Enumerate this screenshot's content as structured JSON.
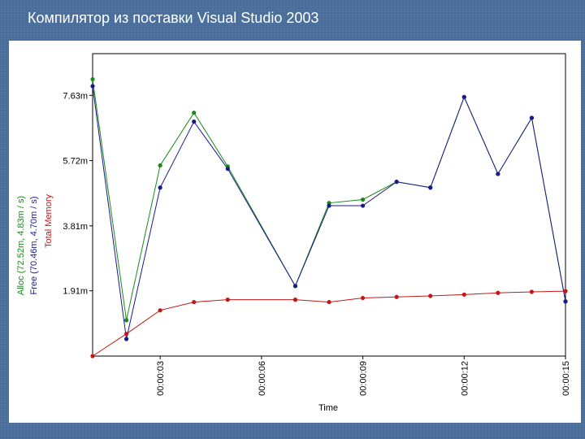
{
  "slide": {
    "title": "Компилятор из поставки Visual Studio 2003"
  },
  "colors": {
    "alloc": "#1a8a1a",
    "free": "#1a1a8a",
    "total": "#c01818",
    "axis": "#000000"
  },
  "chart_data": {
    "type": "line",
    "title": "",
    "xlabel": "Time",
    "ylabels": [
      "Alloc (72.52m, 4.83m / s)",
      "Free (70.46m, 4.70m / s)",
      "Total Memory"
    ],
    "y_tick_labels": [
      "1.91m",
      "3.81m",
      "5.72m",
      "7.63m"
    ],
    "y_tick_values": [
      1.91,
      3.81,
      5.72,
      7.63
    ],
    "x_tick_labels": [
      "00:00:03",
      "00:00:06",
      "00:00:09",
      "00:00:12",
      "00:00:15"
    ],
    "x_tick_values": [
      3,
      6,
      9,
      12,
      15
    ],
    "xlim": [
      1,
      15
    ],
    "ylim": [
      0,
      8.85
    ],
    "grid": false,
    "x": [
      1,
      2,
      3,
      4,
      5,
      7,
      8,
      9,
      10,
      11,
      12,
      13,
      14,
      15
    ],
    "series": [
      {
        "name": "Alloc (72.52m, 4.83m / s)",
        "color": "#1a8a1a",
        "values": [
          8.1,
          1.05,
          5.58,
          7.12,
          5.55,
          2.05,
          4.48,
          4.58,
          5.1,
          4.93,
          7.58,
          5.33,
          6.97,
          1.6
        ]
      },
      {
        "name": "Free (70.46m, 4.70m / s)",
        "color": "#1a1a8a",
        "values": [
          7.9,
          0.5,
          4.93,
          6.86,
          5.48,
          2.05,
          4.4,
          4.4,
          5.1,
          4.93,
          7.58,
          5.33,
          6.97,
          1.6
        ]
      },
      {
        "name": "Total Memory",
        "color": "#c01818",
        "values": [
          0,
          0.65,
          1.34,
          1.58,
          1.65,
          1.65,
          1.58,
          1.7,
          1.73,
          1.76,
          1.8,
          1.85,
          1.88,
          1.9
        ]
      }
    ]
  }
}
